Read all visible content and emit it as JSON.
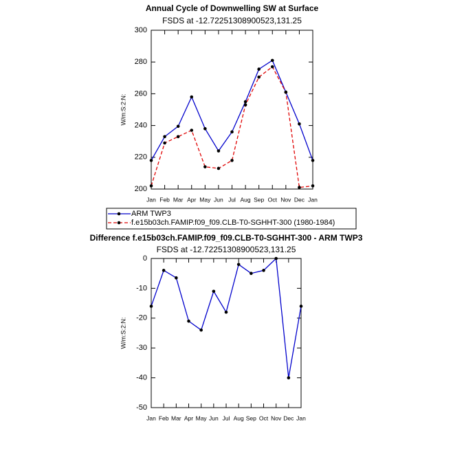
{
  "chart_data": [
    {
      "type": "line",
      "title": "Annual Cycle of Downwelling SW at Surface",
      "subtitle": "FSDS at -12.72251308900523,131.25",
      "y_label": "W/m:S:2:N:",
      "categories": [
        "Jan",
        "Feb",
        "Mar",
        "Apr",
        "May",
        "Jun",
        "Jul",
        "Aug",
        "Sep",
        "Oct",
        "Nov",
        "Dec",
        "Jan"
      ],
      "series": [
        {
          "name": "ARM TWP3",
          "color": "#0000cc",
          "line_style": "solid",
          "values": [
            218,
            233,
            239.5,
            258,
            238,
            224,
            236,
            255,
            275.5,
            281,
            261,
            241,
            218
          ]
        },
        {
          "name": "f.e15b03ch.FAMIP.f09_f09.CLB-T0-SGHHT-300 (1980-1984)",
          "color": "#e00000",
          "line_style": "dashed",
          "values": [
            202,
            229,
            233,
            237,
            214,
            213,
            218,
            253,
            270.5,
            277,
            261,
            201,
            202
          ]
        }
      ],
      "ylim": [
        200,
        300
      ],
      "yticks": [
        200,
        220,
        240,
        260,
        280,
        300
      ],
      "legend": "below"
    },
    {
      "type": "line",
      "title": "Difference f.e15b03ch.FAMIP.f09_f09.CLB-T0-SGHHT-300 - ARM TWP3",
      "subtitle": "FSDS at -12.72251308900523,131.25",
      "y_label": "W/m:S:2:N:",
      "categories": [
        "Jan",
        "Feb",
        "Mar",
        "Apr",
        "May",
        "Jun",
        "Jul",
        "Aug",
        "Sep",
        "Oct",
        "Nov",
        "Dec",
        "Jan"
      ],
      "series": [
        {
          "color": "#0000cc",
          "line_style": "solid",
          "values": [
            -16,
            -4,
            -6.5,
            -21,
            -24,
            -11,
            -18,
            -2,
            -5,
            -4,
            0,
            -40,
            -16
          ]
        }
      ],
      "ylim": [
        -50,
        0
      ],
      "yticks": [
        -50,
        -40,
        -30,
        -20,
        -10,
        0
      ]
    }
  ]
}
